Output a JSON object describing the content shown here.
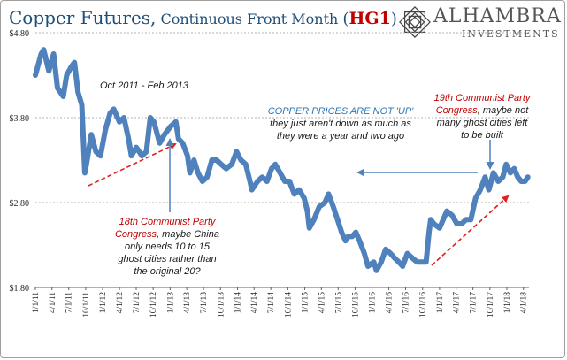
{
  "header": {
    "title_main": "Copper Futures,",
    "title_sub": " Continuous  Front Month ",
    "title_paren_open": "(",
    "title_symbol": "HG1",
    "title_paren_close": ")"
  },
  "logo": {
    "name": "ALHAMBRA",
    "sub": "INVESTMENTS",
    "icon": "alhambra-star-icon"
  },
  "annotations": {
    "period": "Oct 2011 - Feb 2013",
    "center_headline": "COPPER PRICES ARE NOT 'UP'",
    "center_body_1": "they just aren't down as much as",
    "center_body_2": "they were a year and two ago",
    "left_red_1": "18th Communist Party",
    "left_red_2": "Congress",
    "left_body_1": ", maybe China",
    "left_body_2": "only needs 10 to 15",
    "left_body_3": "ghost cities rather than",
    "left_body_4": "the original 20?",
    "right_red_1": "19th Communist Party",
    "right_red_2": "Congress",
    "right_body_1": ", maybe not",
    "right_body_2": "many ghost cities left",
    "right_body_3": "to be built"
  },
  "colors": {
    "series": "#4f81bd",
    "title": "#1f4e79",
    "symbol": "#c00000",
    "red_arrow": "#e02020",
    "blue_arrow": "#4f81bd",
    "grid": "#b0b0b0"
  },
  "chart_data": {
    "type": "line",
    "title": "Copper Futures, Continuous Front Month (HG1)",
    "xlabel": "",
    "ylabel": "",
    "ylim": [
      1.8,
      4.8
    ],
    "grid": true,
    "y_ticks": [
      "$4.80",
      "$3.80",
      "$2.80",
      "$1.80"
    ],
    "y_tick_values": [
      4.8,
      3.8,
      2.8,
      1.8
    ],
    "x_ticks": [
      "1/1/11",
      "4/1/11",
      "7/1/11",
      "10/1/11",
      "1/1/12",
      "4/1/12",
      "7/1/12",
      "10/1/12",
      "1/1/13",
      "4/1/13",
      "7/1/13",
      "10/1/13",
      "1/1/14",
      "4/1/14",
      "7/1/14",
      "10/1/14",
      "1/1/15",
      "4/1/15",
      "7/1/15",
      "10/1/15",
      "1/1/16",
      "4/1/16",
      "7/1/16",
      "10/1/16",
      "1/1/17",
      "4/1/17",
      "7/1/17",
      "10/1/17",
      "1/1/18",
      "4/1/18"
    ],
    "xlim": [
      "2011-01-01",
      "2018-05-01"
    ],
    "series": [
      {
        "x": [
          "2011-01-01",
          "2011-02-01",
          "2011-02-15",
          "2011-03-15",
          "2011-04-10",
          "2011-05-01",
          "2011-06-01",
          "2011-06-20",
          "2011-07-15",
          "2011-08-01",
          "2011-08-20",
          "2011-09-10",
          "2011-09-26",
          "2011-10-05",
          "2011-10-31",
          "2011-11-25",
          "2011-12-20",
          "2012-01-15",
          "2012-02-10",
          "2012-03-01",
          "2012-04-01",
          "2012-04-25",
          "2012-05-20",
          "2012-06-05",
          "2012-07-01",
          "2012-08-01",
          "2012-08-25",
          "2012-09-15",
          "2012-10-05",
          "2012-11-05",
          "2012-12-01",
          "2013-01-05",
          "2013-02-01",
          "2013-02-15",
          "2013-03-10",
          "2013-04-05",
          "2013-04-18",
          "2013-05-10",
          "2013-06-01",
          "2013-06-25",
          "2013-07-20",
          "2013-08-15",
          "2013-09-10",
          "2013-10-05",
          "2013-11-01",
          "2013-12-01",
          "2013-12-27",
          "2014-01-20",
          "2014-02-15",
          "2014-03-10",
          "2014-03-20",
          "2014-04-20",
          "2014-05-15",
          "2014-06-10",
          "2014-07-05",
          "2014-07-25",
          "2014-08-20",
          "2014-09-15",
          "2014-10-10",
          "2014-11-05",
          "2014-12-01",
          "2014-12-29",
          "2015-01-15",
          "2015-01-26",
          "2015-02-20",
          "2015-03-20",
          "2015-04-20",
          "2015-05-10",
          "2015-06-05",
          "2015-07-05",
          "2015-07-20",
          "2015-08-10",
          "2015-08-25",
          "2015-09-15",
          "2015-10-05",
          "2015-10-25",
          "2015-11-20",
          "2015-12-10",
          "2016-01-10",
          "2016-01-25",
          "2016-02-20",
          "2016-03-15",
          "2016-04-10",
          "2016-05-01",
          "2016-05-25",
          "2016-06-15",
          "2016-07-10",
          "2016-08-05",
          "2016-09-01",
          "2016-09-25",
          "2016-10-20",
          "2016-11-05",
          "2016-11-14",
          "2016-12-01",
          "2017-01-01",
          "2017-02-10",
          "2017-03-10",
          "2017-04-05",
          "2017-05-01",
          "2017-05-25",
          "2017-06-20",
          "2017-07-15",
          "2017-08-10",
          "2017-09-05",
          "2017-09-25",
          "2017-10-20",
          "2017-11-15",
          "2017-12-10",
          "2017-12-28",
          "2018-01-20",
          "2018-02-10",
          "2018-03-01",
          "2018-03-20",
          "2018-04-10",
          "2018-04-25"
        ],
        "values": [
          4.3,
          4.55,
          4.6,
          4.35,
          4.55,
          4.15,
          4.05,
          4.3,
          4.4,
          4.45,
          4.1,
          3.95,
          3.15,
          3.25,
          3.6,
          3.4,
          3.35,
          3.65,
          3.85,
          3.9,
          3.75,
          3.8,
          3.55,
          3.35,
          3.45,
          3.35,
          3.4,
          3.8,
          3.75,
          3.5,
          3.6,
          3.7,
          3.75,
          3.55,
          3.5,
          3.35,
          3.15,
          3.3,
          3.15,
          3.05,
          3.1,
          3.3,
          3.3,
          3.25,
          3.2,
          3.25,
          3.4,
          3.3,
          3.25,
          3.05,
          2.95,
          3.05,
          3.1,
          3.05,
          3.2,
          3.25,
          3.15,
          3.05,
          3.05,
          2.9,
          2.95,
          2.85,
          2.7,
          2.5,
          2.6,
          2.75,
          2.8,
          2.9,
          2.75,
          2.55,
          2.45,
          2.35,
          2.4,
          2.4,
          2.45,
          2.35,
          2.2,
          2.05,
          2.1,
          2.0,
          2.1,
          2.25,
          2.2,
          2.15,
          2.1,
          2.05,
          2.2,
          2.15,
          2.1,
          2.1,
          2.1,
          2.45,
          2.6,
          2.55,
          2.5,
          2.7,
          2.65,
          2.55,
          2.55,
          2.6,
          2.6,
          2.85,
          2.95,
          3.1,
          2.95,
          3.15,
          3.05,
          3.1,
          3.25,
          3.15,
          3.2,
          3.1,
          3.05,
          3.05,
          3.1
        ]
      }
    ]
  }
}
